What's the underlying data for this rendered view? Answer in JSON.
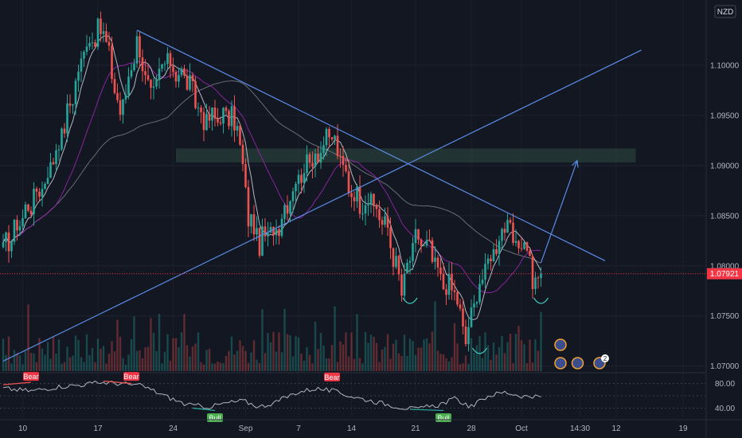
{
  "chart_data": {
    "type": "candlestick",
    "currency_label": "NZD",
    "y_ticks": [
      "1.10000",
      "1.09500",
      "1.09000",
      "1.08500",
      "1.08000",
      "1.07500",
      "1.07000"
    ],
    "y_tick_values": [
      1.1,
      1.095,
      1.09,
      1.085,
      1.08,
      1.075,
      1.07
    ],
    "ylim": [
      1.0695,
      1.1065
    ],
    "last_price_label": "1.07921",
    "last_price": 1.07921,
    "x_ticks": [
      "10",
      "17",
      "24",
      "Sep",
      "7",
      "14",
      "21",
      "28",
      "Oct",
      "14:30",
      "12",
      "19"
    ],
    "candle_count": 194,
    "anchors": [
      [
        0,
        1.0815
      ],
      [
        8,
        1.0855
      ],
      [
        15,
        1.0885
      ],
      [
        22,
        1.094
      ],
      [
        30,
        1.1025
      ],
      [
        36,
        1.1035
      ],
      [
        42,
        1.095
      ],
      [
        48,
        1.1025
      ],
      [
        53,
        1.0965
      ],
      [
        58,
        1.1005
      ],
      [
        66,
        1.0985
      ],
      [
        72,
        1.0945
      ],
      [
        80,
        1.095
      ],
      [
        84,
        1.094
      ],
      [
        88,
        1.085
      ],
      [
        92,
        1.0823
      ],
      [
        98,
        1.0838
      ],
      [
        105,
        1.0885
      ],
      [
        110,
        1.0905
      ],
      [
        118,
        1.093
      ],
      [
        124,
        1.088
      ],
      [
        128,
        1.0865
      ],
      [
        132,
        1.0865
      ],
      [
        138,
        1.0835
      ],
      [
        143,
        1.0775
      ],
      [
        148,
        1.0828
      ],
      [
        153,
        1.0815
      ],
      [
        157,
        1.0785
      ],
      [
        162,
        1.0775
      ],
      [
        166,
        1.0725
      ],
      [
        170,
        1.0775
      ],
      [
        175,
        1.081
      ],
      [
        180,
        1.0842
      ],
      [
        184,
        1.0818
      ],
      [
        188,
        1.0825
      ],
      [
        190,
        1.078
      ],
      [
        193,
        1.0792
      ]
    ],
    "trendlines": [
      {
        "from": [
          48,
          1.1035
        ],
        "to": [
          216,
          1.0805
        ]
      },
      {
        "from": [
          0,
          1.0705
        ],
        "to": [
          229,
          1.1015
        ]
      }
    ],
    "resistance_zone": [
      1.0903,
      1.0917
    ],
    "resistance_zone_x": [
      62,
      227
    ],
    "projection": [
      [
        193,
        1.0803
      ],
      [
        206,
        1.0905
      ]
    ],
    "indicator_ticks": [
      "80.00",
      "40.00"
    ],
    "indicator_tick_values": [
      80,
      40
    ],
    "indicator_range": [
      25,
      95
    ],
    "indicator_anchors": [
      [
        0,
        72
      ],
      [
        10,
        68
      ],
      [
        20,
        75
      ],
      [
        28,
        78
      ],
      [
        36,
        82
      ],
      [
        44,
        79
      ],
      [
        50,
        76
      ],
      [
        58,
        60
      ],
      [
        66,
        45
      ],
      [
        74,
        42
      ],
      [
        80,
        48
      ],
      [
        86,
        52
      ],
      [
        92,
        42
      ],
      [
        98,
        50
      ],
      [
        105,
        65
      ],
      [
        112,
        72
      ],
      [
        118,
        68
      ],
      [
        126,
        58
      ],
      [
        134,
        50
      ],
      [
        142,
        42
      ],
      [
        148,
        38
      ],
      [
        156,
        45
      ],
      [
        162,
        55
      ],
      [
        168,
        42
      ],
      [
        174,
        60
      ],
      [
        180,
        66
      ],
      [
        186,
        60
      ],
      [
        193,
        57
      ]
    ],
    "signals": [
      {
        "label": "Bear",
        "type": "bear",
        "bar": 10,
        "value": 80
      },
      {
        "label": "Bear",
        "type": "bear",
        "bar": 46,
        "value": 80
      },
      {
        "label": "Bull",
        "type": "bull",
        "bar": 76,
        "value": 36
      },
      {
        "label": "Bear",
        "type": "bear",
        "bar": 118,
        "value": 79
      },
      {
        "label": "Bull",
        "type": "bull",
        "bar": 158,
        "value": 36
      }
    ],
    "event_markers": [
      {
        "bar": 200,
        "label": ""
      },
      {
        "bar": 200,
        "label": ""
      },
      {
        "bar": 205,
        "label": ""
      },
      {
        "bar": 214,
        "label": "2"
      }
    ],
    "colors": {
      "background": "#131722",
      "up": "#26a69a",
      "down": "#ef5350",
      "trendline": "#5b8de8",
      "ma_fast": "#d1d4dc",
      "ma_mid": "#9c27b0",
      "ma_slow": "#787b86",
      "zone": "#2e4b3f",
      "price_tag": "#f23645",
      "indicator": "#b2b5be"
    }
  }
}
